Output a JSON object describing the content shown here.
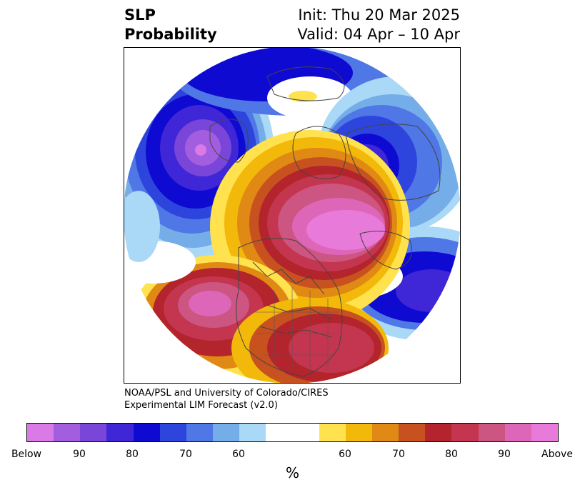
{
  "title": {
    "left_line1": "SLP",
    "left_line2": "Probability",
    "right_line1": "Init: Thu 20 Mar 2025",
    "right_line2": "Valid: 04 Apr – 10 Apr"
  },
  "credit": {
    "line1": "NOAA/PSL and University of Colorado/CIRES",
    "line2": "Experimental LIM Forecast (v2.0)"
  },
  "colorbar": {
    "colors": [
      "#d97ae6",
      "#a35ee0",
      "#7a45d9",
      "#3f26d6",
      "#0f0ad1",
      "#2e45dd",
      "#4f77e6",
      "#75ade8",
      "#aad8f7",
      "#ffffff",
      "#ffe24d",
      "#f2b90a",
      "#e08914",
      "#c75220",
      "#b3242c",
      "#c4364f",
      "#cc5582",
      "#de66b8",
      "#e87ad9"
    ],
    "tick_labels": [
      "Below",
      "90",
      "80",
      "70",
      "60",
      "60",
      "70",
      "80",
      "90",
      "Above"
    ],
    "unit": "%"
  },
  "map": {
    "projection": "north-polar-stereographic",
    "features": [
      "SLP probability shading",
      "coastlines",
      "country borders",
      "US state borders"
    ]
  }
}
